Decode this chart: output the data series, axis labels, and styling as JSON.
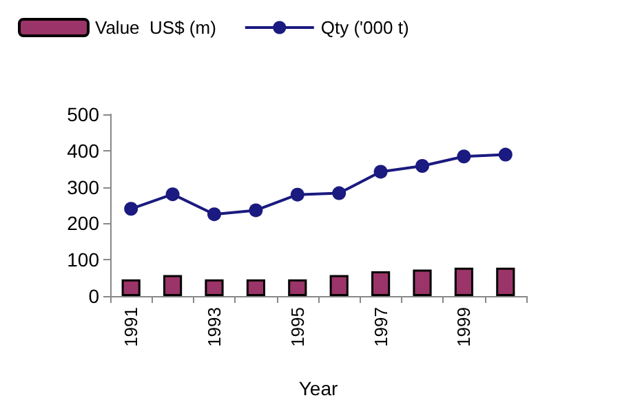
{
  "chart_data": {
    "type": "bar",
    "xlabel": "Year",
    "categories": [
      "1991",
      null,
      "1993",
      null,
      "1995",
      null,
      "1997",
      null,
      "1999",
      null
    ],
    "series": [
      {
        "name": "Value  US$ (m)",
        "color": "#9b3468",
        "values": [
          46,
          58,
          46,
          46,
          46,
          58,
          68,
          73,
          78,
          78
        ]
      },
      {
        "name": "Qty ('000 t)",
        "type": "line",
        "color": "#1a1a80",
        "values": [
          240,
          280,
          225,
          236,
          279,
          283,
          342,
          358,
          384,
          389
        ]
      }
    ],
    "ylim": [
      0,
      500
    ],
    "yticks": [
      0,
      100,
      200,
      300,
      400,
      500
    ],
    "grid": false,
    "legend": "top",
    "marker": "circle"
  }
}
